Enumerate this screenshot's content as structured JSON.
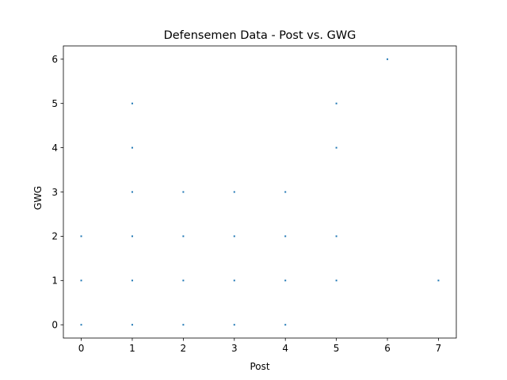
{
  "chart_data": {
    "type": "scatter",
    "title": "Defensemen Data - Post vs. GWG",
    "xlabel": "Post",
    "ylabel": "GWG",
    "xlim": [
      -0.35,
      7.35
    ],
    "ylim": [
      -0.3,
      6.3
    ],
    "xticks": [
      0,
      1,
      2,
      3,
      4,
      5,
      6,
      7
    ],
    "yticks": [
      0,
      1,
      2,
      3,
      4,
      5,
      6
    ],
    "grid": false,
    "marker_color": "#1f77b4",
    "points": [
      {
        "x": 0,
        "y": 0
      },
      {
        "x": 0,
        "y": 1
      },
      {
        "x": 0,
        "y": 2
      },
      {
        "x": 1,
        "y": 0
      },
      {
        "x": 1,
        "y": 1
      },
      {
        "x": 1,
        "y": 2
      },
      {
        "x": 1,
        "y": 3
      },
      {
        "x": 1,
        "y": 4
      },
      {
        "x": 1,
        "y": 5
      },
      {
        "x": 2,
        "y": 0
      },
      {
        "x": 2,
        "y": 1
      },
      {
        "x": 2,
        "y": 2
      },
      {
        "x": 2,
        "y": 3
      },
      {
        "x": 3,
        "y": 0
      },
      {
        "x": 3,
        "y": 1
      },
      {
        "x": 3,
        "y": 2
      },
      {
        "x": 3,
        "y": 3
      },
      {
        "x": 4,
        "y": 0
      },
      {
        "x": 4,
        "y": 1
      },
      {
        "x": 4,
        "y": 2
      },
      {
        "x": 4,
        "y": 3
      },
      {
        "x": 5,
        "y": 1
      },
      {
        "x": 5,
        "y": 2
      },
      {
        "x": 5,
        "y": 4
      },
      {
        "x": 5,
        "y": 5
      },
      {
        "x": 6,
        "y": 6
      },
      {
        "x": 7,
        "y": 1
      }
    ]
  }
}
